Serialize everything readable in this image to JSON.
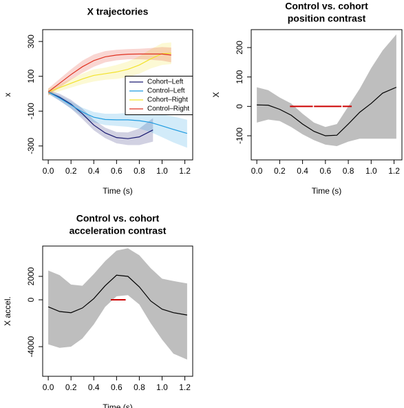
{
  "chart_data": [
    {
      "type": "line",
      "title": [
        "X trajectories"
      ],
      "xlabel": "Time (s)",
      "ylabel": "x",
      "xlim": [
        -0.049,
        1.269
      ],
      "ylim": [
        -380,
        368
      ],
      "xticks": [
        {
          "value": 0,
          "label": "0.0"
        },
        {
          "value": 0.2,
          "label": "0.2"
        },
        {
          "value": 0.4,
          "label": "0.4"
        },
        {
          "value": 0.6,
          "label": "0.6"
        },
        {
          "value": 0.8,
          "label": "0.8"
        },
        {
          "value": 1,
          "label": "1.0"
        },
        {
          "value": 1.2,
          "label": "1.2"
        }
      ],
      "yticks": [
        -300,
        -100,
        100,
        300
      ],
      "legend": "right",
      "band_opacity": 0.2,
      "series": [
        {
          "name": "Cohort–Left",
          "color": "#191970",
          "x": [
            0,
            0.1,
            0.2,
            0.3,
            0.4,
            0.5,
            0.6,
            0.7,
            0.8,
            0.92
          ],
          "values": [
            10,
            -20,
            -60,
            -115,
            -180,
            -225,
            -252,
            -258,
            -248,
            -208
          ],
          "lower": [
            0,
            -40,
            -85,
            -145,
            -210,
            -255,
            -285,
            -295,
            -295,
            -275
          ],
          "upper": [
            20,
            0,
            -35,
            -85,
            -150,
            -195,
            -220,
            -222,
            -200,
            -140
          ]
        },
        {
          "name": "Control–Left",
          "color": "#1e9be0",
          "x": [
            0,
            0.1,
            0.2,
            0.3,
            0.4,
            0.5,
            0.6,
            0.7,
            0.8,
            0.9,
            1,
            1.1,
            1.22
          ],
          "values": [
            10,
            -25,
            -65,
            -105,
            -135,
            -148,
            -150,
            -150,
            -155,
            -165,
            -185,
            -205,
            -228
          ],
          "lower": [
            0,
            -40,
            -85,
            -130,
            -165,
            -180,
            -185,
            -190,
            -200,
            -220,
            -250,
            -280,
            -310
          ],
          "upper": [
            20,
            -10,
            -45,
            -80,
            -105,
            -115,
            -115,
            -110,
            -110,
            -110,
            -120,
            -130,
            -150
          ]
        },
        {
          "name": "Cohort–Right",
          "color": "#f2e22a",
          "x": [
            0,
            0.1,
            0.2,
            0.3,
            0.4,
            0.5,
            0.6,
            0.7,
            0.8,
            0.9,
            1,
            1.08
          ],
          "values": [
            10,
            35,
            60,
            85,
            105,
            115,
            125,
            140,
            165,
            200,
            230,
            232
          ],
          "lower": [
            -10,
            15,
            35,
            55,
            70,
            80,
            85,
            95,
            115,
            145,
            165,
            170
          ],
          "upper": [
            30,
            55,
            85,
            115,
            140,
            150,
            165,
            185,
            215,
            255,
            290,
            295
          ]
        },
        {
          "name": "Control–Right",
          "color": "#e0311f",
          "x": [
            0,
            0.1,
            0.2,
            0.3,
            0.4,
            0.5,
            0.6,
            0.7,
            0.8,
            0.9,
            1,
            1.08
          ],
          "values": [
            10,
            60,
            110,
            155,
            190,
            212,
            222,
            227,
            228,
            228,
            228,
            222
          ],
          "lower": [
            -10,
            35,
            80,
            120,
            155,
            180,
            192,
            198,
            198,
            195,
            190,
            180
          ],
          "upper": [
            30,
            85,
            140,
            190,
            225,
            245,
            252,
            256,
            258,
            262,
            268,
            265
          ]
        }
      ]
    },
    {
      "type": "line",
      "title": [
        "Control vs. cohort",
        "position contrast"
      ],
      "xlabel": "Time (s)",
      "ylabel": "X",
      "xlim": [
        -0.049,
        1.269
      ],
      "ylim": [
        -182,
        261
      ],
      "xticks": [
        {
          "value": 0,
          "label": "0.0"
        },
        {
          "value": 0.2,
          "label": "0.2"
        },
        {
          "value": 0.4,
          "label": "0.4"
        },
        {
          "value": 0.6,
          "label": "0.6"
        },
        {
          "value": 0.8,
          "label": "0.8"
        },
        {
          "value": 1,
          "label": "1.0"
        },
        {
          "value": 1.2,
          "label": "1.2"
        }
      ],
      "yticks": [
        -100,
        0,
        100,
        200
      ],
      "band_color": "#bebebe",
      "highlight": {
        "color": "#cc0000",
        "y": 0,
        "ranges": [
          [
            0.29,
            0.49
          ],
          [
            0.5,
            0.74
          ],
          [
            0.75,
            0.83
          ]
        ]
      },
      "series": [
        {
          "color": "#000000",
          "x": [
            0,
            0.1,
            0.2,
            0.3,
            0.4,
            0.5,
            0.6,
            0.7,
            0.8,
            0.9,
            1,
            1.1,
            1.22
          ],
          "values": [
            5,
            4,
            -10,
            -30,
            -60,
            -85,
            -100,
            -98,
            -60,
            -20,
            10,
            45,
            65
          ],
          "lower": [
            -55,
            -45,
            -50,
            -70,
            -95,
            -115,
            -130,
            -135,
            -120,
            -110,
            -110,
            -110,
            -110
          ],
          "upper": [
            65,
            55,
            30,
            10,
            -25,
            -55,
            -70,
            -60,
            0,
            60,
            130,
            190,
            245
          ]
        }
      ]
    },
    {
      "type": "line",
      "title": [
        "Control vs. cohort",
        "acceleration contrast"
      ],
      "xlabel": "Time (s)",
      "ylabel": "X accel.",
      "xlim": [
        -0.049,
        1.269
      ],
      "ylim": [
        -6529,
        4588
      ],
      "xticks": [
        {
          "value": 0,
          "label": "0.0"
        },
        {
          "value": 0.2,
          "label": "0.2"
        },
        {
          "value": 0.4,
          "label": "0.4"
        },
        {
          "value": 0.6,
          "label": "0.6"
        },
        {
          "value": 0.8,
          "label": "0.8"
        },
        {
          "value": 1,
          "label": "1.0"
        },
        {
          "value": 1.2,
          "label": "1.2"
        }
      ],
      "yticks": [
        -4000,
        0,
        2000
      ],
      "band_color": "#bebebe",
      "highlight": {
        "color": "#cc0000",
        "y": 0,
        "ranges": [
          [
            0.55,
            0.68
          ]
        ]
      },
      "series": [
        {
          "color": "#000000",
          "x": [
            0,
            0.1,
            0.2,
            0.3,
            0.4,
            0.5,
            0.6,
            0.7,
            0.8,
            0.9,
            1,
            1.1,
            1.22
          ],
          "values": [
            -600,
            -1000,
            -1100,
            -700,
            100,
            1200,
            2100,
            2000,
            1100,
            -100,
            -800,
            -1100,
            -1300
          ],
          "lower": [
            -3800,
            -4100,
            -4000,
            -3300,
            -2100,
            -600,
            300,
            400,
            -400,
            -2000,
            -3400,
            -4600,
            -5100
          ],
          "upper": [
            2500,
            2100,
            1300,
            1200,
            2200,
            3300,
            4200,
            4400,
            3800,
            2700,
            1800,
            1600,
            1400
          ]
        }
      ]
    }
  ]
}
